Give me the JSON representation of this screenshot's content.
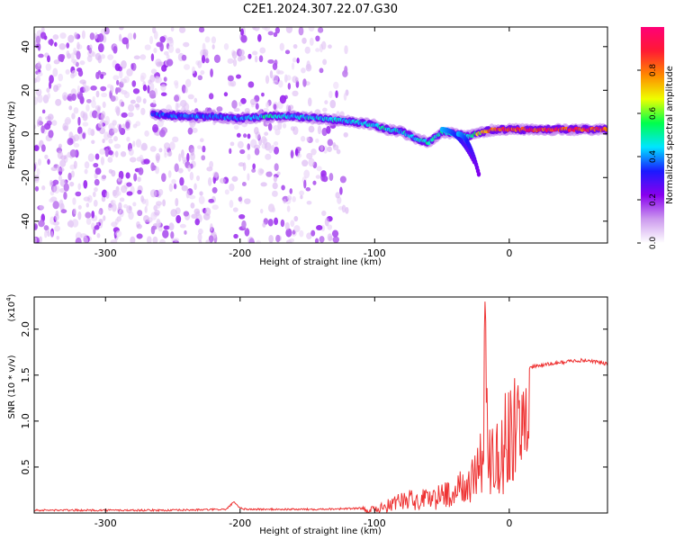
{
  "title": "C2E1.2024.307.22.07.G30",
  "chart_data": [
    {
      "type": "heatmap",
      "title": "C2E1.2024.307.22.07.G30",
      "xlabel": "Height of straight line (km)",
      "ylabel": "Frequency (Hz)",
      "xlim": [
        -353,
        73
      ],
      "ylim": [
        -50,
        49
      ],
      "xticks": [
        -300,
        -200,
        -100,
        0
      ],
      "yticks": [
        -40,
        -20,
        0,
        20,
        40
      ],
      "colorbar": {
        "label": "Normalized spectral amplitude",
        "ticks": [
          0.0,
          0.2,
          0.4,
          0.6,
          0.8
        ],
        "range": [
          0,
          1
        ],
        "colormap": [
          "#ffffff",
          "#cc99ee",
          "#8800ee",
          "#1a1aff",
          "#00e5ff",
          "#00ff4c",
          "#eeff00",
          "#ff8800",
          "#ff1a33",
          "#ff0077"
        ]
      },
      "ridge": {
        "x": [
          -265,
          -240,
          -220,
          -200,
          -180,
          -160,
          -140,
          -120,
          -100,
          -90,
          -80,
          -70,
          -60,
          -50,
          -40,
          -30,
          -20,
          -10,
          0,
          20,
          40,
          73
        ],
        "y": [
          9,
          8,
          8,
          7,
          8,
          8,
          7,
          6,
          4,
          2,
          1,
          -2,
          -4,
          1,
          0,
          -1,
          1,
          2,
          2,
          2,
          2,
          2
        ],
        "amplitude": [
          0.35,
          0.4,
          0.4,
          0.4,
          0.5,
          0.45,
          0.45,
          0.45,
          0.45,
          0.5,
          0.45,
          0.45,
          0.5,
          0.5,
          0.5,
          0.55,
          0.7,
          0.85,
          0.9,
          0.9,
          0.9,
          0.9
        ]
      },
      "noise_extent_x": [
        -353,
        -120
      ],
      "grid": false,
      "legend": "colorbar-right"
    },
    {
      "type": "line",
      "title": "",
      "xlabel": "Height of straight line (km)",
      "ylabel": "SNR (10 * v/v)",
      "y_multiplier_label": "(x10",
      "y_multiplier_exp": "4",
      "y_multiplier_close": ")",
      "xlim": [
        -353,
        73
      ],
      "ylim": [
        0,
        2.35
      ],
      "xticks": [
        -300,
        -200,
        -100,
        0
      ],
      "yticks": [
        0.5,
        1.0,
        1.5,
        2.0
      ],
      "envelope": {
        "x": [
          -353,
          -250,
          -210,
          -205,
          -200,
          -195,
          -150,
          -110,
          -100,
          -90,
          -80,
          -70,
          -60,
          -50,
          -40,
          -30,
          -25,
          -20,
          -18,
          -15,
          -10,
          -5,
          0,
          5,
          10,
          15,
          20,
          30,
          40,
          50,
          60,
          73
        ],
        "y": [
          0.03,
          0.03,
          0.04,
          0.12,
          0.05,
          0.04,
          0.04,
          0.05,
          0.08,
          0.15,
          0.22,
          0.25,
          0.3,
          0.32,
          0.4,
          0.55,
          0.9,
          1.0,
          2.3,
          1.0,
          1.25,
          1.35,
          1.4,
          1.5,
          1.55,
          1.58,
          1.6,
          1.62,
          1.64,
          1.66,
          1.66,
          1.62
        ]
      },
      "color": "#ee3333",
      "grid": false
    }
  ]
}
